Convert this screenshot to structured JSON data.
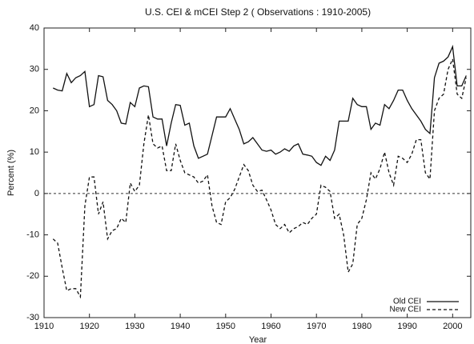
{
  "chart_data": {
    "type": "line",
    "title": "U.S. CEI & mCEI Step 2 ( Observations : 1910-2005)",
    "xlabel": "Year",
    "ylabel": "Percent (%)",
    "x": [
      1912,
      1913,
      1914,
      1915,
      1916,
      1917,
      1918,
      1919,
      1920,
      1921,
      1922,
      1923,
      1924,
      1925,
      1926,
      1927,
      1928,
      1929,
      1930,
      1931,
      1932,
      1933,
      1934,
      1935,
      1936,
      1937,
      1938,
      1939,
      1940,
      1941,
      1942,
      1943,
      1944,
      1945,
      1946,
      1947,
      1948,
      1949,
      1950,
      1951,
      1952,
      1953,
      1954,
      1955,
      1956,
      1957,
      1958,
      1959,
      1960,
      1961,
      1962,
      1963,
      1964,
      1965,
      1966,
      1967,
      1968,
      1969,
      1970,
      1971,
      1972,
      1973,
      1974,
      1975,
      1976,
      1977,
      1978,
      1979,
      1980,
      1981,
      1982,
      1983,
      1984,
      1985,
      1986,
      1987,
      1988,
      1989,
      1990,
      1991,
      1992,
      1993,
      1994,
      1995,
      1996,
      1997,
      1998,
      1999,
      2000,
      2001,
      2002,
      2003
    ],
    "series": [
      {
        "name": "Old CEI",
        "color": "#111111",
        "linestyle": "solid",
        "values": [
          25.5,
          25,
          24.8,
          29,
          26.8,
          28,
          28.5,
          29.5,
          21,
          21.5,
          28.5,
          28.2,
          22.5,
          21.5,
          20,
          17,
          16.8,
          22,
          21,
          25.5,
          26,
          25.8,
          18.5,
          18,
          18,
          11.5,
          17,
          21.5,
          21.3,
          16.5,
          17,
          11.5,
          8.5,
          9,
          9.5,
          14,
          18.5,
          18.5,
          18.5,
          20.5,
          18,
          15.5,
          12,
          12.5,
          13.5,
          12,
          10.5,
          10.2,
          10.5,
          9.5,
          10,
          10.8,
          10.2,
          11.5,
          12,
          9.5,
          9.3,
          9,
          7.5,
          6.8,
          9,
          8,
          10.5,
          17.5,
          17.5,
          17.5,
          23,
          21.5,
          21,
          21,
          15.5,
          17,
          16.5,
          21.5,
          20.5,
          22.5,
          25,
          25,
          22.5,
          20.5,
          19,
          17.5,
          15.5,
          14.5,
          28,
          31.5,
          32,
          33,
          35.5,
          26,
          26,
          28.5
        ]
      },
      {
        "name": "New CEI",
        "color": "#111111",
        "linestyle": "dashed",
        "values": [
          -11,
          -12,
          -18,
          -23.5,
          -23,
          -23,
          -25,
          -3,
          4,
          4,
          -5,
          -2,
          -11,
          -9,
          -8.5,
          -6,
          -7,
          2.5,
          0.5,
          2,
          12,
          19,
          12,
          11,
          11.5,
          5.5,
          5.5,
          12,
          8,
          5,
          4.5,
          4,
          2.5,
          3,
          4.5,
          -3,
          -7,
          -7.5,
          -2,
          -1,
          1,
          4,
          7,
          5.5,
          2,
          0.5,
          0.8,
          -1.5,
          -4,
          -7.5,
          -8.5,
          -7.5,
          -9.5,
          -8.5,
          -8,
          -7,
          -7.5,
          -6,
          -5,
          2,
          1.5,
          0.5,
          -6,
          -5,
          -10,
          -19,
          -17,
          -7.5,
          -6,
          -1.5,
          5,
          3.5,
          6,
          10,
          5,
          2,
          9,
          8.5,
          7.5,
          9.5,
          13,
          13,
          5,
          3.5,
          20,
          23,
          24,
          30,
          32.5,
          24,
          23,
          28
        ]
      }
    ],
    "xlim": [
      1910,
      2004
    ],
    "xticks": [
      1910,
      1920,
      1930,
      1940,
      1950,
      1960,
      1970,
      1980,
      1990,
      2000
    ],
    "ylim": [
      -30,
      40
    ],
    "yticks": [
      -30,
      -20,
      -10,
      0,
      10,
      20,
      30,
      40
    ],
    "reference_line": 0,
    "legend": "lower right"
  }
}
